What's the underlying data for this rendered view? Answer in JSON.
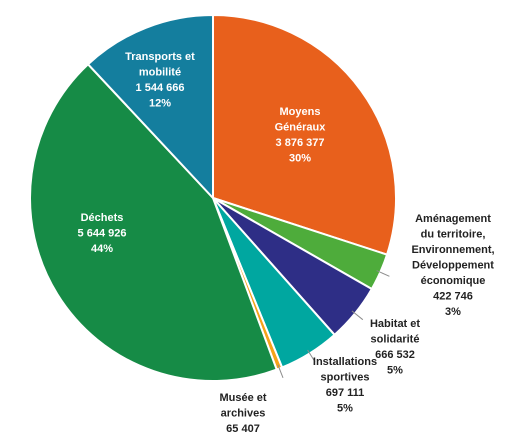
{
  "chart_data": {
    "type": "pie",
    "title": "",
    "slices": [
      {
        "key": "moyens",
        "lines": [
          "Moyens",
          "Généraux",
          "3 876 377",
          "30%"
        ],
        "value": 3876377,
        "color": "#E8601C"
      },
      {
        "key": "amenagement",
        "lines": [
          "Aménagement",
          "du territoire,",
          "Environnement,",
          "Développement",
          "économique",
          "422 746",
          "3%"
        ],
        "value": 422746,
        "color": "#4EAC3B"
      },
      {
        "key": "habitat",
        "lines": [
          "Habitat et",
          "solidarité",
          "666 532",
          "5%"
        ],
        "value": 666532,
        "color": "#2E2E86"
      },
      {
        "key": "installations",
        "lines": [
          "Installations",
          "sportives",
          "697 111",
          "5%"
        ],
        "value": 697111,
        "color": "#00A7A0"
      },
      {
        "key": "musee",
        "lines": [
          "Musée et",
          "archives",
          "65 407"
        ],
        "value": 65407,
        "color": "#F5A31A"
      },
      {
        "key": "dechets",
        "lines": [
          "Déchets",
          "5 644 926",
          "44%"
        ],
        "value": 5644926,
        "color": "#168B46"
      },
      {
        "key": "transports",
        "lines": [
          "Transports et",
          "mobilité",
          "1 544 666",
          "12%"
        ],
        "value": 1544666,
        "color": "#147E9E"
      }
    ]
  }
}
